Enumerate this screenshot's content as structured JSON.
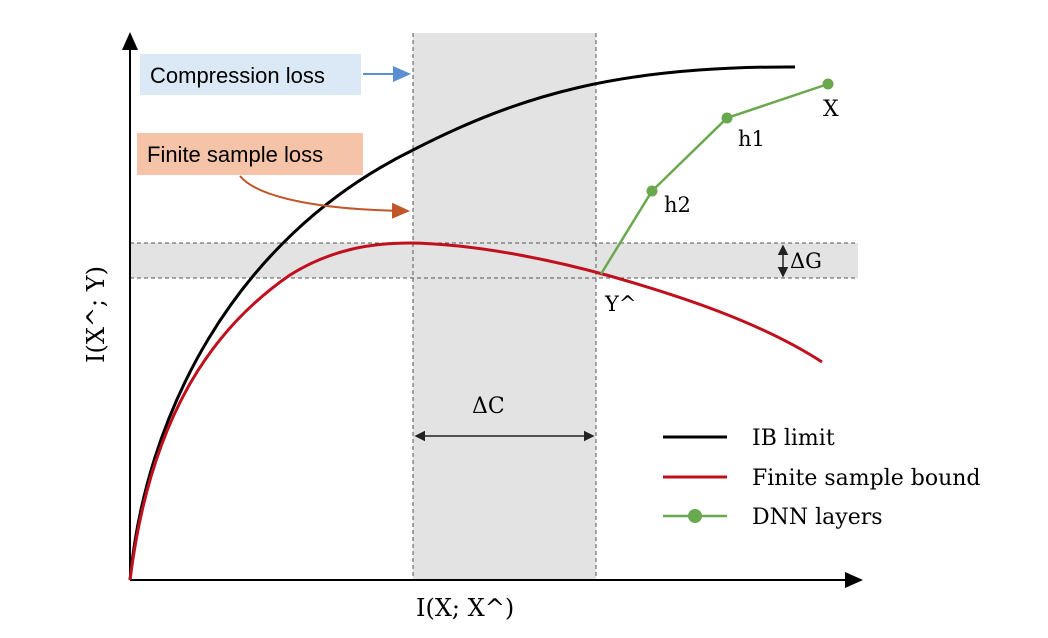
{
  "axes": {
    "xlabel": "I(X; X^)",
    "ylabel": "I(X^; Y)"
  },
  "callouts": {
    "compression_loss": "Compression loss",
    "finite_sample_loss": "Finite sample loss"
  },
  "annotations": {
    "delta_c": "ΔC",
    "delta_g": "ΔG"
  },
  "layer_labels": {
    "x": "X",
    "h1": "h1",
    "h2": "h2",
    "y_hat": "Y^"
  },
  "legend": {
    "ib_limit": "IB limit",
    "finite_sample_bound": "Finite sample bound",
    "dnn_layers": "DNN layers"
  },
  "colors": {
    "ib_limit": "#000000",
    "finite_sample_bound": "#c0101e",
    "dnn_layers": "#6aa84f",
    "compression_callout_bg": "#dbe8f5",
    "finite_callout_bg": "#f4c3a8",
    "compression_arrow": "#5b8fd1",
    "finite_arrow": "#c0562a",
    "shaded_band": "#e3e3e3"
  }
}
